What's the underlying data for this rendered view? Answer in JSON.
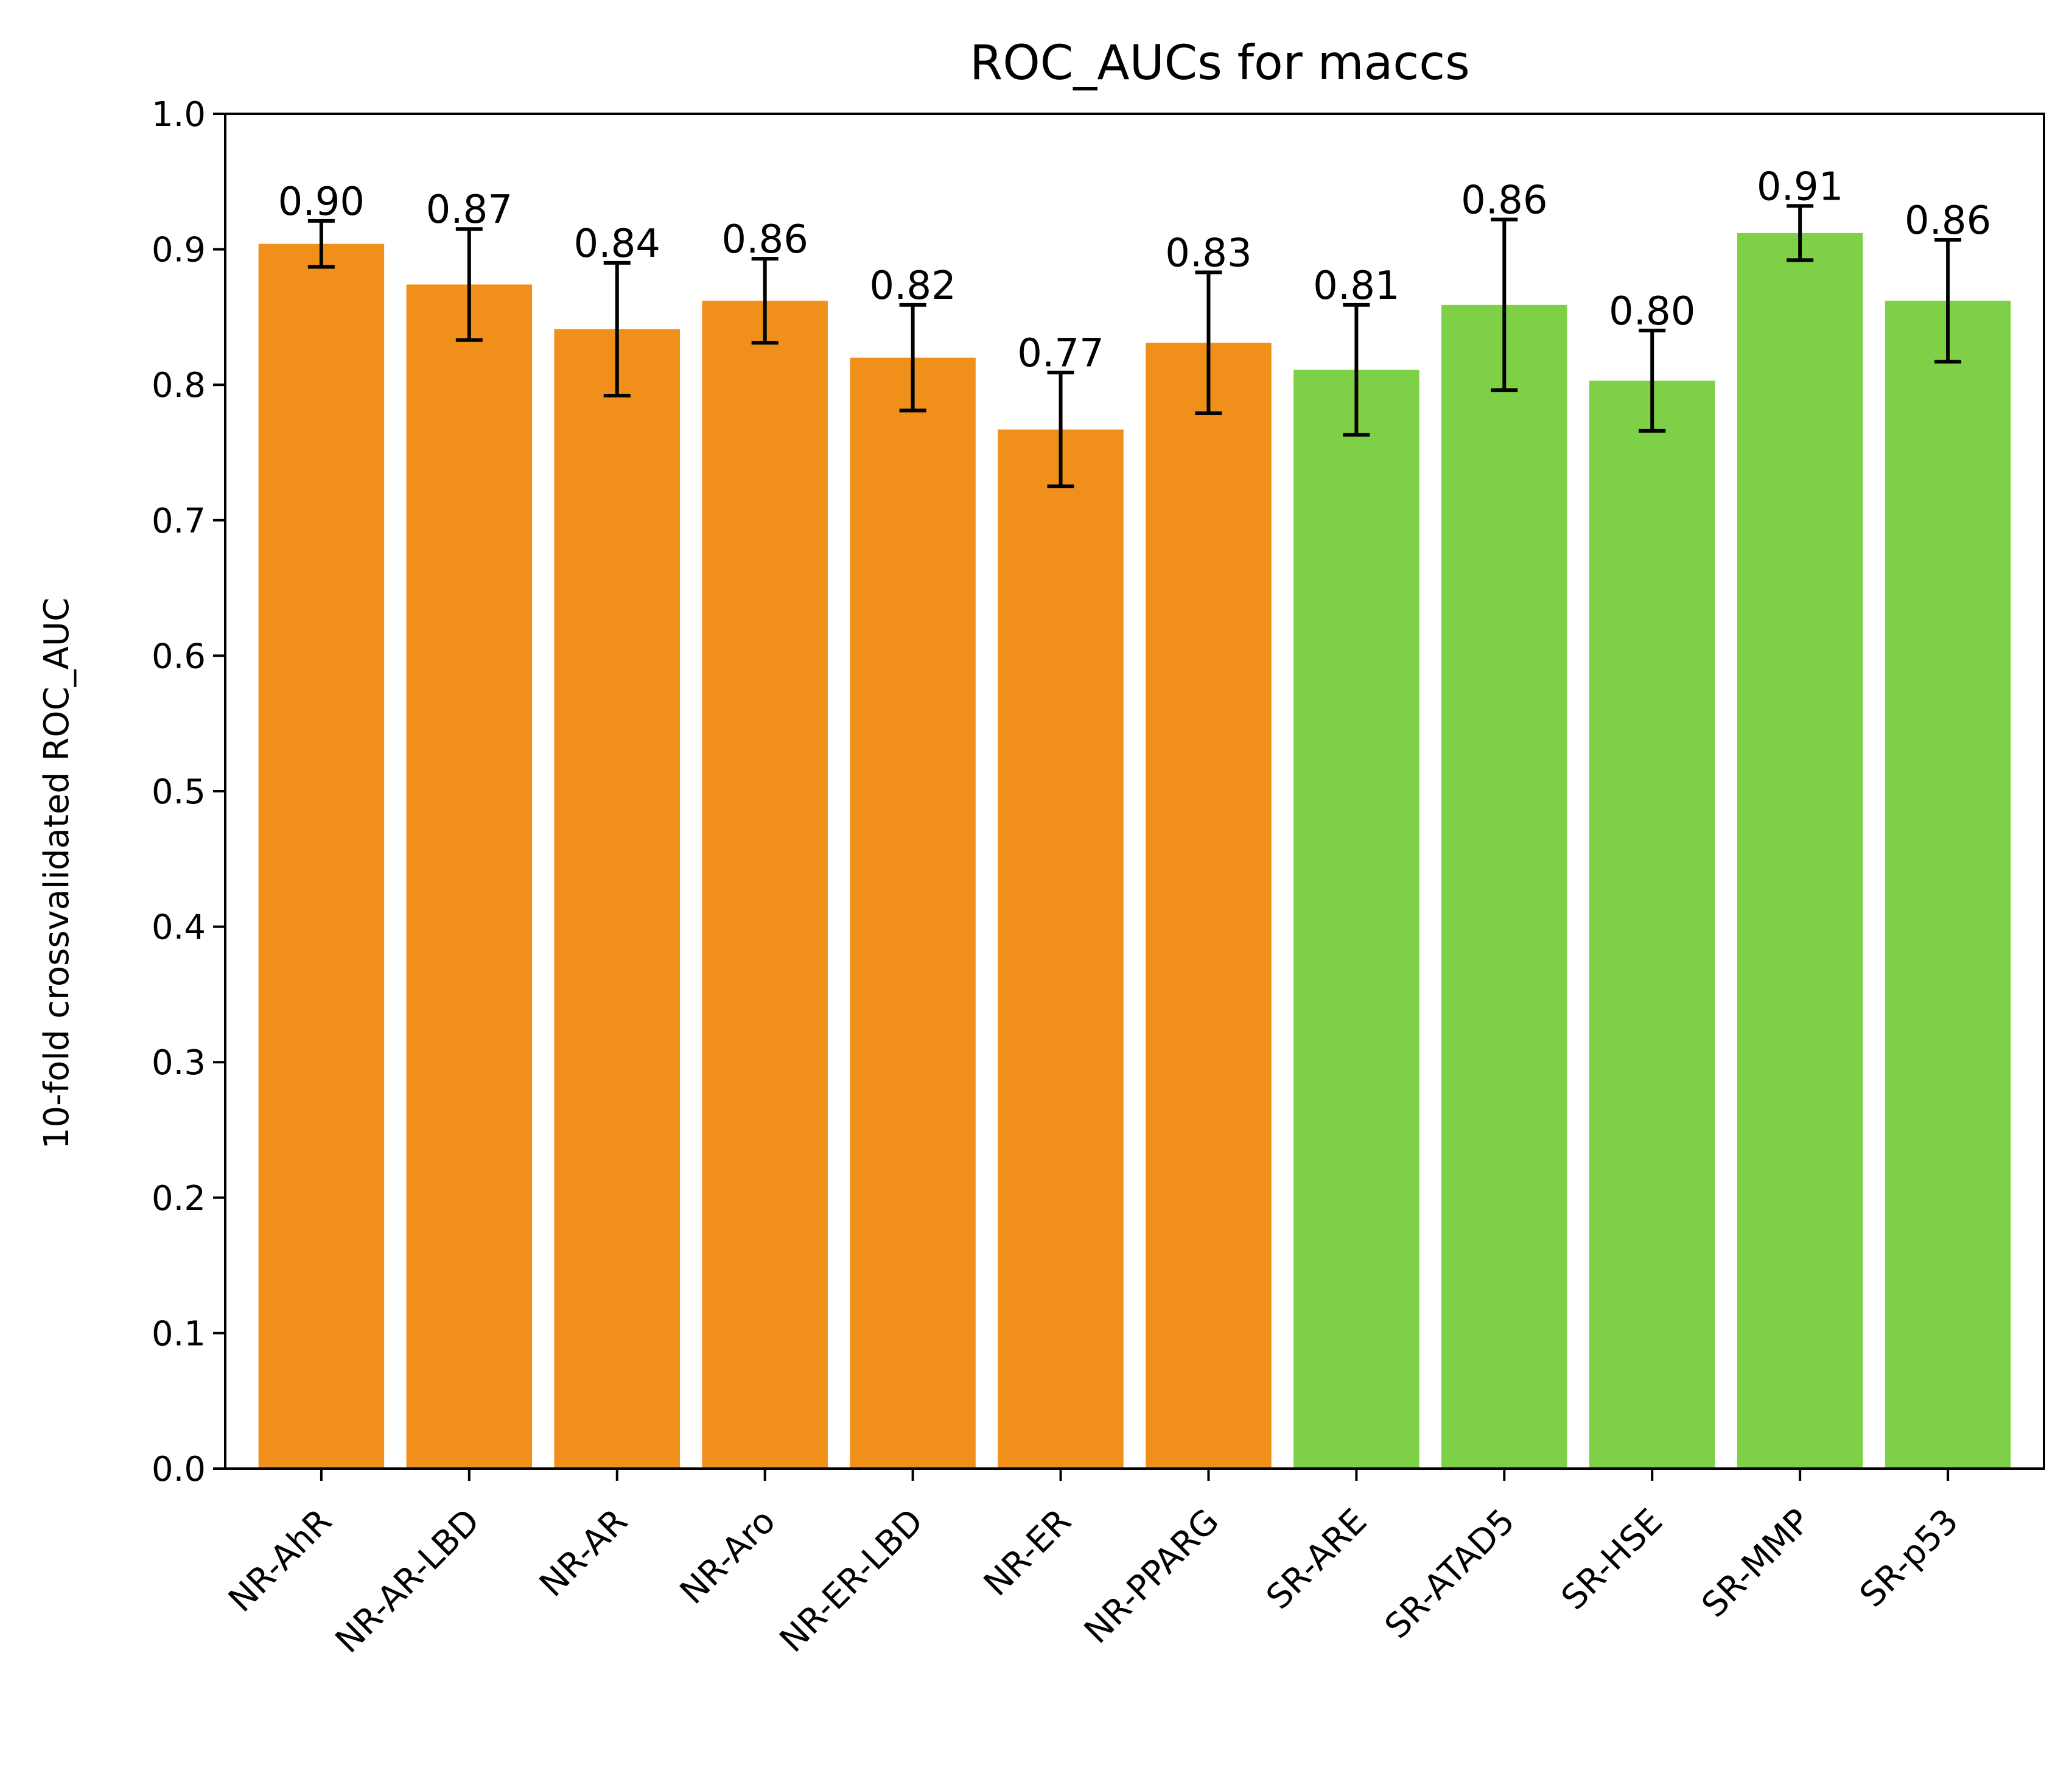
{
  "chart_data": {
    "type": "bar",
    "title": "ROC_AUCs for maccs",
    "xlabel": "",
    "ylabel": "10-fold crossvalidated ROC_AUC",
    "ylim": [
      0.0,
      1.0
    ],
    "yticks": [
      0.0,
      0.1,
      0.2,
      0.3,
      0.4,
      0.5,
      0.6,
      0.7,
      0.8,
      0.9,
      1.0
    ],
    "ytick_labels": [
      "0.0",
      "0.1",
      "0.2",
      "0.3",
      "0.4",
      "0.5",
      "0.6",
      "0.7",
      "0.8",
      "0.9",
      "1.0"
    ],
    "grid": false,
    "legend": "none",
    "categories": [
      "NR-AhR",
      "NR-AR-LBD",
      "NR-AR",
      "NR-Aro",
      "NR-ER-LBD",
      "NR-ER",
      "NR-PPARG",
      "SR-ARE",
      "SR-ATAD5",
      "SR-HSE",
      "SR-MMP",
      "SR-p53"
    ],
    "values": [
      0.904,
      0.874,
      0.841,
      0.862,
      0.82,
      0.767,
      0.831,
      0.811,
      0.859,
      0.803,
      0.912,
      0.862
    ],
    "errors": [
      0.017,
      0.041,
      0.049,
      0.031,
      0.039,
      0.042,
      0.052,
      0.048,
      0.063,
      0.037,
      0.02,
      0.045
    ],
    "data_labels": [
      "0.90",
      "0.87",
      "0.84",
      "0.86",
      "0.82",
      "0.77",
      "0.83",
      "0.81",
      "0.86",
      "0.80",
      "0.91",
      "0.86"
    ],
    "bar_colors": [
      "#f0901a",
      "#f0901a",
      "#f0901a",
      "#f0901a",
      "#f0901a",
      "#f0901a",
      "#f0901a",
      "#7ed146",
      "#7ed146",
      "#7ed146",
      "#7ed146",
      "#7ed146"
    ],
    "error_color": "#000000"
  }
}
